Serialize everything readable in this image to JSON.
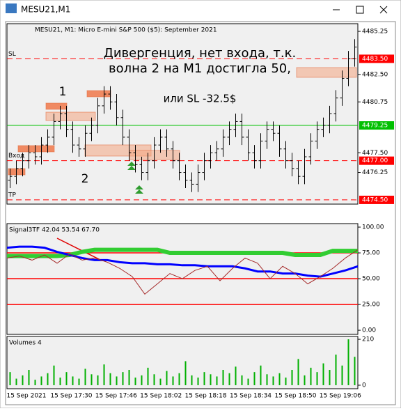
{
  "window": {
    "title": "MESU21,M1"
  },
  "x_labels": [
    "15 Sep 2021",
    "15 Sep 17:30",
    "15 Sep 17:46",
    "15 Sep 18:02",
    "15 Sep 18:18",
    "15 Sep 18:34",
    "15 Sep 18:50",
    "15 Sep 19:06"
  ],
  "chart_data": [
    {
      "type": "ohlc",
      "title": "MESU21, M1:  Micro E-mini S&P 500 ($5): September 2021",
      "color": "#000000",
      "annotations": [
        "Дивергенция, нет входа, т.к.",
        "волна 2 на М1 достигла 50,",
        "или SL -32.5$",
        "1",
        "2"
      ],
      "open": [
        4475.75,
        4476.0,
        4476.5,
        4477.0,
        4477.5,
        4477.25,
        4478.0,
        4478.5,
        4479.5,
        4480.0,
        4479.0,
        4478.0,
        4477.75,
        4478.75,
        4479.25,
        4480.5,
        4481.25,
        4480.75,
        4479.75,
        4478.5,
        4477.5,
        4476.75,
        4476.25,
        4477.0,
        4478.0,
        4478.5,
        4477.75,
        4477.0,
        4476.25,
        4475.75,
        4475.5,
        4476.25,
        4477.0,
        4477.5,
        4477.75,
        4478.5,
        4479.0,
        4479.5,
        4478.5,
        4477.5,
        4477.0,
        4478.25,
        4479.0,
        4478.75,
        4477.75,
        4477.0,
        4476.5,
        4476.0,
        4477.25,
        4478.25,
        4479.0,
        4479.25,
        4480.0,
        4481.0,
        4482.25,
        4483.5
      ],
      "high": [
        4476.5,
        4477.0,
        4477.5,
        4478.0,
        4478.0,
        4478.5,
        4479.0,
        4480.0,
        4480.5,
        4480.5,
        4479.5,
        4478.5,
        4479.25,
        4479.75,
        4481.0,
        4481.75,
        4481.75,
        4481.25,
        4480.25,
        4479.0,
        4478.0,
        4477.25,
        4477.5,
        4478.5,
        4479.0,
        4479.0,
        4478.25,
        4477.5,
        4476.75,
        4476.25,
        4476.75,
        4477.5,
        4478.0,
        4478.25,
        4479.0,
        4479.5,
        4480.0,
        4480.0,
        4479.0,
        4478.0,
        4478.75,
        4479.5,
        4479.5,
        4479.25,
        4478.25,
        4477.5,
        4477.0,
        4477.75,
        4478.75,
        4479.5,
        4479.75,
        4480.5,
        4481.5,
        4482.75,
        4484.0,
        4484.75
      ],
      "low": [
        4475.25,
        4475.5,
        4476.0,
        4476.5,
        4476.75,
        4476.75,
        4477.5,
        4478.0,
        4479.0,
        4478.5,
        4477.5,
        4477.25,
        4477.25,
        4478.25,
        4478.75,
        4480.0,
        4480.25,
        4479.25,
        4478.0,
        4477.0,
        4476.25,
        4475.75,
        4475.75,
        4476.5,
        4477.5,
        4477.25,
        4476.5,
        4475.75,
        4475.25,
        4475.0,
        4475.0,
        4475.75,
        4476.5,
        4477.0,
        4477.25,
        4478.0,
        4478.5,
        4478.0,
        4477.0,
        4476.5,
        4476.5,
        4477.75,
        4478.25,
        4477.25,
        4476.5,
        4476.0,
        4475.5,
        4475.5,
        4476.75,
        4477.75,
        4478.5,
        4478.75,
        4479.5,
        4480.5,
        4481.75,
        4483.0
      ],
      "close": [
        4476.0,
        4476.5,
        4477.0,
        4477.5,
        4477.25,
        4478.0,
        4478.5,
        4479.5,
        4480.0,
        4479.0,
        4478.0,
        4477.75,
        4478.75,
        4479.25,
        4480.5,
        4481.25,
        4480.75,
        4479.75,
        4478.5,
        4477.5,
        4476.75,
        4476.25,
        4477.0,
        4478.0,
        4478.5,
        4477.75,
        4477.0,
        4476.25,
        4475.75,
        4475.5,
        4476.25,
        4477.0,
        4477.5,
        4477.75,
        4478.5,
        4479.0,
        4479.5,
        4478.5,
        4477.5,
        4477.0,
        4478.25,
        4479.0,
        4478.75,
        4477.75,
        4477.0,
        4476.5,
        4476.0,
        4477.25,
        4478.25,
        4479.0,
        4479.25,
        4480.0,
        4481.0,
        4482.25,
        4483.5,
        4484.25
      ],
      "ylim": [
        4474.23,
        4485.74
      ],
      "yticks": [
        {
          "value": 4485.25,
          "label": "4485.25"
        },
        {
          "value": 4482.5,
          "label": "4482.50"
        },
        {
          "value": 4480.75,
          "label": "4480.75"
        },
        {
          "value": 4477.5,
          "label": "4477.50"
        },
        {
          "value": 4476.25,
          "label": "4476.25"
        }
      ],
      "levels": [
        {
          "name": "SL",
          "value": 4483.5,
          "label": "4483.50",
          "color": "#ff0000",
          "dashed": true
        },
        {
          "value": 4479.25,
          "color": "#00c000",
          "dashed": false
        },
        {
          "name": "Вход",
          "value": 4477.0,
          "label": "4477.00",
          "color": "#ff0000",
          "dashed": true
        },
        {
          "name": "TP",
          "value": 4474.5,
          "label": "4474.50",
          "color": "#ff0000",
          "dashed": true
        }
      ]
    },
    {
      "type": "line",
      "title": "Signal3TF 42.04 53.54 67.70",
      "series": [
        {
          "color": "#32cd32",
          "values": [
            72,
            72,
            72,
            72,
            72,
            73,
            76,
            78,
            78,
            78,
            78,
            78,
            78,
            75,
            75,
            75,
            75,
            75,
            75,
            75,
            75,
            75,
            75,
            73,
            73,
            73,
            77,
            77,
            77
          ]
        },
        {
          "color": "#0000ff",
          "values": [
            80,
            81,
            81,
            80,
            76,
            73,
            70,
            68,
            68,
            66,
            65,
            65,
            64,
            64,
            63,
            63,
            62,
            62,
            62,
            60,
            57,
            57,
            55,
            55,
            53,
            52,
            55,
            58,
            62
          ]
        },
        {
          "color": "#a52a2a",
          "values": [
            70,
            72,
            68,
            73,
            65,
            74,
            68,
            70,
            66,
            60,
            52,
            35,
            45,
            55,
            50,
            58,
            62,
            48,
            60,
            70,
            65,
            50,
            62,
            55,
            45,
            52,
            60,
            70,
            78
          ]
        }
      ],
      "hlines": [
        75,
        50,
        25
      ],
      "hline_color": "#ff0000",
      "ylim": [
        -4,
        103.4
      ],
      "yticks": [
        {
          "value": 100,
          "label": "100.00"
        },
        {
          "value": 75,
          "label": "75.00"
        },
        {
          "value": 50,
          "label": "50.00"
        },
        {
          "value": 25,
          "label": "25.00"
        },
        {
          "value": 0,
          "label": "0.00"
        }
      ]
    },
    {
      "type": "bar",
      "title": "Volumes 4",
      "color": "#00b000",
      "values": [
        60,
        30,
        45,
        70,
        25,
        40,
        55,
        90,
        35,
        60,
        40,
        30,
        75,
        50,
        45,
        95,
        55,
        40,
        60,
        70,
        35,
        45,
        80,
        50,
        30,
        65,
        40,
        55,
        110,
        45,
        35,
        60,
        50,
        40,
        70,
        55,
        85,
        45,
        30,
        60,
        90,
        50,
        40,
        55,
        35,
        70,
        120,
        45,
        80,
        60,
        100,
        70,
        140,
        90,
        210,
        130
      ],
      "ylim": [
        -16,
        223
      ],
      "yticks": [
        210,
        0
      ]
    }
  ]
}
